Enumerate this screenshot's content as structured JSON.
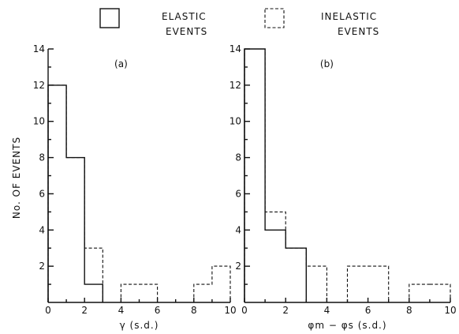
{
  "legend": {
    "elastic": [
      "ELASTIC",
      "EVENTS"
    ],
    "inelastic": [
      "INELASTIC",
      "EVENTS"
    ]
  },
  "ylabel": "No. OF EVENTS",
  "chart_data": [
    {
      "type": "bar",
      "panel_label": "(a)",
      "xlabel": "γ  (s.d.)",
      "ylabel": "No. OF EVENTS",
      "xlim": [
        0,
        10
      ],
      "ylim": [
        0,
        14
      ],
      "xticks": [
        0,
        2,
        4,
        6,
        8,
        10
      ],
      "yticks": [
        2,
        4,
        6,
        8,
        10,
        12,
        14
      ],
      "bin_edges": [
        0,
        1,
        2,
        3,
        4,
        5,
        6,
        7,
        8,
        9,
        10
      ],
      "series": [
        {
          "name": "ELASTIC EVENTS",
          "style": "solid",
          "values": [
            12,
            8,
            1,
            0,
            0,
            0,
            0,
            0,
            0,
            0
          ]
        },
        {
          "name": "INELASTIC EVENTS",
          "style": "dashed",
          "values": [
            12,
            8,
            3,
            0,
            1,
            1,
            0,
            0,
            1,
            2
          ]
        }
      ]
    },
    {
      "type": "bar",
      "panel_label": "(b)",
      "xlabel": "φm − φs  (s.d.)",
      "ylabel": "",
      "xlim": [
        0,
        10
      ],
      "ylim": [
        0,
        14
      ],
      "xticks": [
        0,
        2,
        4,
        6,
        8,
        10
      ],
      "yticks": [
        2,
        4,
        6,
        8,
        10,
        12,
        14
      ],
      "bin_edges": [
        0,
        1,
        2,
        3,
        4,
        5,
        6,
        7,
        8,
        9,
        10
      ],
      "series": [
        {
          "name": "ELASTIC EVENTS",
          "style": "solid",
          "values": [
            14,
            4,
            3,
            0,
            0,
            0,
            0,
            0,
            0,
            0
          ]
        },
        {
          "name": "INELASTIC EVENTS",
          "style": "dashed",
          "values": [
            14,
            5,
            3,
            2,
            0,
            2,
            2,
            0,
            1,
            1
          ]
        }
      ]
    }
  ]
}
